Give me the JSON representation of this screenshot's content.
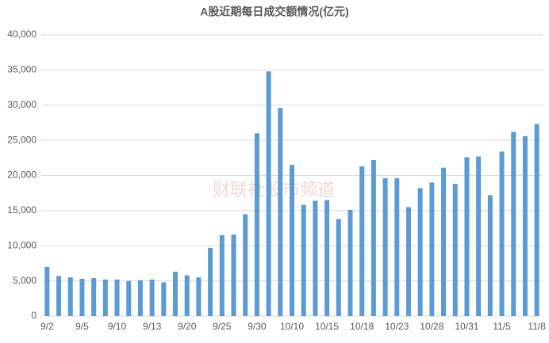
{
  "chart_data": {
    "type": "bar",
    "title": "A股近期每日成交额情况(亿元)",
    "watermark": "财联社股市频道",
    "categories": [
      "9/2",
      null,
      null,
      "9/5",
      null,
      null,
      "9/10",
      null,
      null,
      "9/13",
      null,
      null,
      "9/20",
      null,
      null,
      "9/25",
      null,
      null,
      "9/30",
      null,
      null,
      "10/10",
      null,
      null,
      "10/15",
      null,
      null,
      "10/18",
      null,
      null,
      "10/23",
      null,
      null,
      "10/28",
      null,
      null,
      "10/31",
      null,
      null,
      "11/5",
      null,
      null,
      "11/8"
    ],
    "values": [
      7000,
      5700,
      5500,
      5300,
      5400,
      5200,
      5200,
      5000,
      5100,
      5200,
      4800,
      6300,
      5800,
      5500,
      9700,
      11500,
      11600,
      14500,
      26000,
      34800,
      29600,
      21500,
      15800,
      16400,
      16500,
      13800,
      15100,
      21300,
      22200,
      19600,
      19600,
      15500,
      18200,
      19000,
      21100,
      18800,
      22600,
      22700,
      17200,
      23400,
      26200,
      25600,
      27300
    ],
    "color": "#5b9bd5",
    "ylim": [
      0,
      40000
    ],
    "yticks": [
      0,
      {
        "value": 5000,
        "label": "5,000"
      },
      {
        "value": 10000,
        "label": "10,000"
      },
      {
        "value": 15000,
        "label": "15,000"
      },
      {
        "value": 20000,
        "label": "20,000"
      },
      {
        "value": 25000,
        "label": "25,000"
      },
      {
        "value": 30000,
        "label": "30,000"
      },
      {
        "value": 35000,
        "label": "35,000"
      },
      {
        "value": 40000,
        "label": "40,000"
      }
    ],
    "grid": true
  }
}
